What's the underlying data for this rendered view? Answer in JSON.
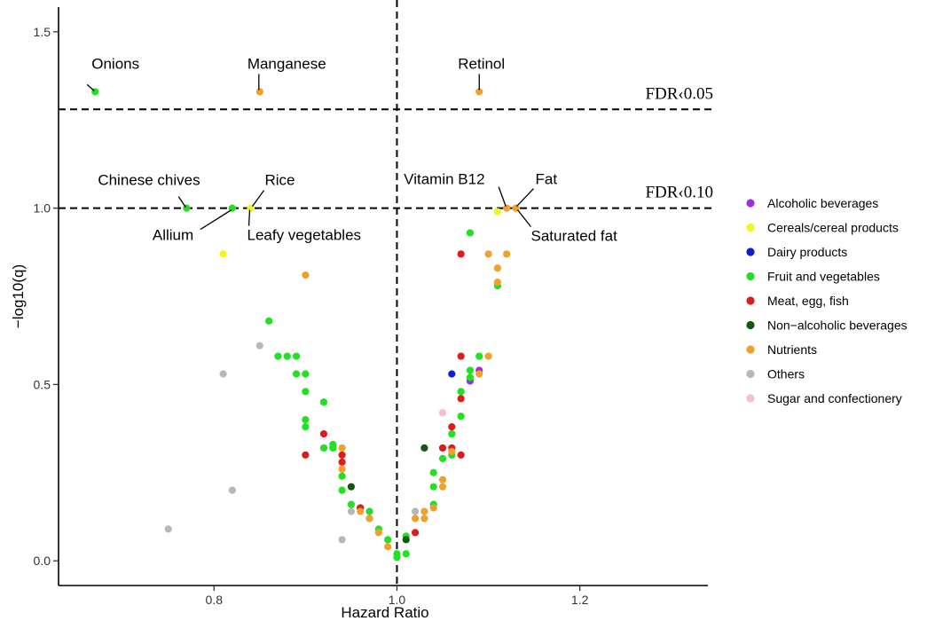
{
  "chart_data": {
    "type": "scatter",
    "title": "",
    "xlabel": "Hazard Ratio",
    "ylabel": "−log10(q)",
    "xlim": [
      0.63,
      1.34
    ],
    "ylim": [
      -0.07,
      1.57
    ],
    "x_ticks": [
      0.8,
      1.0,
      1.2
    ],
    "x_tick_labels": [
      "0.8",
      "1.0",
      "1.2"
    ],
    "y_ticks": [
      0.0,
      0.5,
      1.0,
      1.5
    ],
    "y_tick_labels": [
      "0.0",
      "0.5",
      "1.0",
      "1.5"
    ],
    "grid": false,
    "legend_position": "right",
    "reference_lines": [
      {
        "id": "fdr005",
        "axis": "y",
        "value": 1.28,
        "label": "FDR‹0.05"
      },
      {
        "id": "fdr010",
        "axis": "y",
        "value": 1.0,
        "label": "FDR‹0.10"
      },
      {
        "id": "hr1",
        "axis": "x",
        "value": 1.0,
        "label": ""
      }
    ],
    "categories": [
      {
        "key": "alc",
        "name": "Alcoholic beverages",
        "color": "#9b30d9"
      },
      {
        "key": "cer",
        "name": "Cereals/cereal products",
        "color": "#f5f51e"
      },
      {
        "key": "dai",
        "name": "Dairy products",
        "color": "#0a1fd0"
      },
      {
        "key": "fru",
        "name": "Fruit and vegetables",
        "color": "#22e022"
      },
      {
        "key": "mea",
        "name": "Meat, egg, fish",
        "color": "#dd1c1c"
      },
      {
        "key": "non",
        "name": "Non−alcoholic beverages",
        "color": "#0f5a0f"
      },
      {
        "key": "nut",
        "name": "Nutrients",
        "color": "#f0a12b"
      },
      {
        "key": "oth",
        "name": "Others",
        "color": "#b8b8b8"
      },
      {
        "key": "sug",
        "name": "Sugar and confectionery",
        "color": "#f6bfcc"
      }
    ],
    "series": [
      {
        "name": "Alcoholic beverages",
        "key": "alc",
        "points": [
          [
            1.08,
            0.51
          ],
          [
            1.09,
            0.54
          ]
        ]
      },
      {
        "name": "Cereals/cereal products",
        "key": "cer",
        "points": [
          [
            0.81,
            0.87
          ],
          [
            0.84,
            1.0
          ],
          [
            1.11,
            0.99
          ]
        ]
      },
      {
        "name": "Dairy products",
        "key": "dai",
        "points": [
          [
            1.06,
            0.53
          ]
        ]
      },
      {
        "name": "Fruit and vegetables",
        "key": "fru",
        "points": [
          [
            0.67,
            1.33
          ],
          [
            0.77,
            1.0
          ],
          [
            0.82,
            1.0
          ],
          [
            0.86,
            0.68
          ],
          [
            0.87,
            0.58
          ],
          [
            0.88,
            0.58
          ],
          [
            0.89,
            0.58
          ],
          [
            0.89,
            0.53
          ],
          [
            0.9,
            0.53
          ],
          [
            0.9,
            0.48
          ],
          [
            0.9,
            0.4
          ],
          [
            0.9,
            0.38
          ],
          [
            0.92,
            0.45
          ],
          [
            0.92,
            0.32
          ],
          [
            0.93,
            0.33
          ],
          [
            0.93,
            0.32
          ],
          [
            0.94,
            0.24
          ],
          [
            0.94,
            0.2
          ],
          [
            0.95,
            0.16
          ],
          [
            0.96,
            0.15
          ],
          [
            0.97,
            0.14
          ],
          [
            0.97,
            0.12
          ],
          [
            0.98,
            0.09
          ],
          [
            0.99,
            0.06
          ],
          [
            1.0,
            0.02
          ],
          [
            1.0,
            0.01
          ],
          [
            1.01,
            0.07
          ],
          [
            1.01,
            0.02
          ],
          [
            1.04,
            0.25
          ],
          [
            1.04,
            0.21
          ],
          [
            1.04,
            0.16
          ],
          [
            1.05,
            0.29
          ],
          [
            1.06,
            0.36
          ],
          [
            1.06,
            0.3
          ],
          [
            1.07,
            0.41
          ],
          [
            1.07,
            0.48
          ],
          [
            1.08,
            0.93
          ],
          [
            1.08,
            0.54
          ],
          [
            1.08,
            0.52
          ],
          [
            1.09,
            0.58
          ],
          [
            1.11,
            0.78
          ]
        ]
      },
      {
        "name": "Meat, egg, fish",
        "key": "mea",
        "points": [
          [
            0.9,
            0.3
          ],
          [
            0.92,
            0.36
          ],
          [
            0.94,
            0.3
          ],
          [
            0.94,
            0.28
          ],
          [
            0.96,
            0.15
          ],
          [
            1.02,
            0.08
          ],
          [
            1.05,
            0.32
          ],
          [
            1.06,
            0.38
          ],
          [
            1.06,
            0.32
          ],
          [
            1.07,
            0.3
          ],
          [
            1.07,
            0.46
          ],
          [
            1.07,
            0.58
          ],
          [
            1.07,
            0.87
          ]
        ]
      },
      {
        "name": "Non−alcoholic beverages",
        "key": "non",
        "points": [
          [
            0.95,
            0.21
          ],
          [
            1.03,
            0.32
          ],
          [
            1.01,
            0.06
          ]
        ]
      },
      {
        "name": "Nutrients",
        "key": "nut",
        "points": [
          [
            0.85,
            1.33
          ],
          [
            1.09,
            1.33
          ],
          [
            0.9,
            0.81
          ],
          [
            0.94,
            0.32
          ],
          [
            0.94,
            0.26
          ],
          [
            0.96,
            0.14
          ],
          [
            0.97,
            0.12
          ],
          [
            0.98,
            0.08
          ],
          [
            0.99,
            0.04
          ],
          [
            1.02,
            0.12
          ],
          [
            1.03,
            0.14
          ],
          [
            1.03,
            0.12
          ],
          [
            1.04,
            0.15
          ],
          [
            1.05,
            0.21
          ],
          [
            1.05,
            0.23
          ],
          [
            1.06,
            0.31
          ],
          [
            1.09,
            0.53
          ],
          [
            1.1,
            0.58
          ],
          [
            1.1,
            0.87
          ],
          [
            1.11,
            0.83
          ],
          [
            1.11,
            0.79
          ],
          [
            1.12,
            0.87
          ],
          [
            1.12,
            1.0
          ],
          [
            1.13,
            1.0
          ]
        ]
      },
      {
        "name": "Others",
        "key": "oth",
        "points": [
          [
            0.75,
            0.09
          ],
          [
            0.81,
            0.53
          ],
          [
            0.82,
            0.2
          ],
          [
            0.85,
            0.61
          ],
          [
            0.94,
            0.06
          ],
          [
            0.95,
            0.14
          ],
          [
            1.02,
            0.14
          ]
        ]
      },
      {
        "name": "Sugar and confectionery",
        "key": "sug",
        "points": [
          [
            1.05,
            0.42
          ]
        ]
      }
    ],
    "annotations": [
      {
        "text": "Onions",
        "x": 0.67,
        "y": 1.33
      },
      {
        "text": "Manganese",
        "x": 0.85,
        "y": 1.33
      },
      {
        "text": "Retinol",
        "x": 1.09,
        "y": 1.33
      },
      {
        "text": "Chinese chives",
        "x": 0.77,
        "y": 1.0
      },
      {
        "text": "Rice",
        "x": 0.84,
        "y": 1.0
      },
      {
        "text": "Allium",
        "x": 0.82,
        "y": 1.0
      },
      {
        "text": "Leafy vegetables",
        "x": 0.84,
        "y": 1.0
      },
      {
        "text": "Vitamin B12",
        "x": 1.12,
        "y": 1.0
      },
      {
        "text": "Fat",
        "x": 1.13,
        "y": 1.0
      },
      {
        "text": "Saturated fat",
        "x": 1.13,
        "y": 1.0
      }
    ]
  }
}
